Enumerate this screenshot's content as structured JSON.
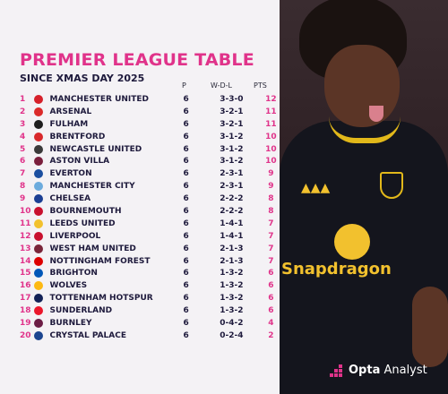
{
  "title": "PREMIER LEAGUE TABLE",
  "subtitle": "SINCE XMAS DAY 2025",
  "columns": {
    "played": "P",
    "wdl": "W-D-L",
    "points": "PTS"
  },
  "brand": {
    "name_bold": "Opta",
    "name_regular": " Analyst",
    "accent": "#e0338a"
  },
  "kit": {
    "sponsor": "Snapdragon"
  },
  "rows": [
    {
      "pos": "1",
      "team": "MANCHESTER UNITED",
      "p": "6",
      "wdl": "3-3-0",
      "pts": "12",
      "crest": "#d6202a"
    },
    {
      "pos": "2",
      "team": "ARSENAL",
      "p": "6",
      "wdl": "3-2-1",
      "pts": "11",
      "crest": "#db2a2a"
    },
    {
      "pos": "3",
      "team": "FULHAM",
      "p": "6",
      "wdl": "3-2-1",
      "pts": "11",
      "crest": "#1e1e1e"
    },
    {
      "pos": "4",
      "team": "BRENTFORD",
      "p": "6",
      "wdl": "3-1-2",
      "pts": "10",
      "crest": "#d8282b"
    },
    {
      "pos": "5",
      "team": "NEWCASTLE UNITED",
      "p": "6",
      "wdl": "3-1-2",
      "pts": "10",
      "crest": "#3a3a3a"
    },
    {
      "pos": "6",
      "team": "ASTON VILLA",
      "p": "6",
      "wdl": "3-1-2",
      "pts": "10",
      "crest": "#7a1f3d"
    },
    {
      "pos": "7",
      "team": "EVERTON",
      "p": "6",
      "wdl": "2-3-1",
      "pts": "9",
      "crest": "#1b4fa0"
    },
    {
      "pos": "8",
      "team": "MANCHESTER CITY",
      "p": "6",
      "wdl": "2-3-1",
      "pts": "9",
      "crest": "#6cabdd"
    },
    {
      "pos": "9",
      "team": "CHELSEA",
      "p": "6",
      "wdl": "2-2-2",
      "pts": "8",
      "crest": "#1b3f94"
    },
    {
      "pos": "10",
      "team": "BOURNEMOUTH",
      "p": "6",
      "wdl": "2-2-2",
      "pts": "8",
      "crest": "#c8102e"
    },
    {
      "pos": "11",
      "team": "LEEDS UNITED",
      "p": "6",
      "wdl": "1-4-1",
      "pts": "7",
      "crest": "#f2c12e"
    },
    {
      "pos": "12",
      "team": "LIVERPOOL",
      "p": "6",
      "wdl": "1-4-1",
      "pts": "7",
      "crest": "#c8102e"
    },
    {
      "pos": "13",
      "team": "WEST HAM UNITED",
      "p": "6",
      "wdl": "2-1-3",
      "pts": "7",
      "crest": "#7a263a"
    },
    {
      "pos": "14",
      "team": "NOTTINGHAM FOREST",
      "p": "6",
      "wdl": "2-1-3",
      "pts": "7",
      "crest": "#dd0000"
    },
    {
      "pos": "15",
      "team": "BRIGHTON",
      "p": "6",
      "wdl": "1-3-2",
      "pts": "6",
      "crest": "#0057b8"
    },
    {
      "pos": "16",
      "team": "WOLVES",
      "p": "6",
      "wdl": "1-3-2",
      "pts": "6",
      "crest": "#fdb913"
    },
    {
      "pos": "17",
      "team": "TOTTENHAM HOTSPUR",
      "p": "6",
      "wdl": "1-3-2",
      "pts": "6",
      "crest": "#132257"
    },
    {
      "pos": "18",
      "team": "SUNDERLAND",
      "p": "6",
      "wdl": "1-3-2",
      "pts": "6",
      "crest": "#eb172b"
    },
    {
      "pos": "19",
      "team": "BURNLEY",
      "p": "6",
      "wdl": "0-4-2",
      "pts": "4",
      "crest": "#6c1d45"
    },
    {
      "pos": "20",
      "team": "CRYSTAL PALACE",
      "p": "6",
      "wdl": "0-2-4",
      "pts": "2",
      "crest": "#1b458f"
    }
  ]
}
